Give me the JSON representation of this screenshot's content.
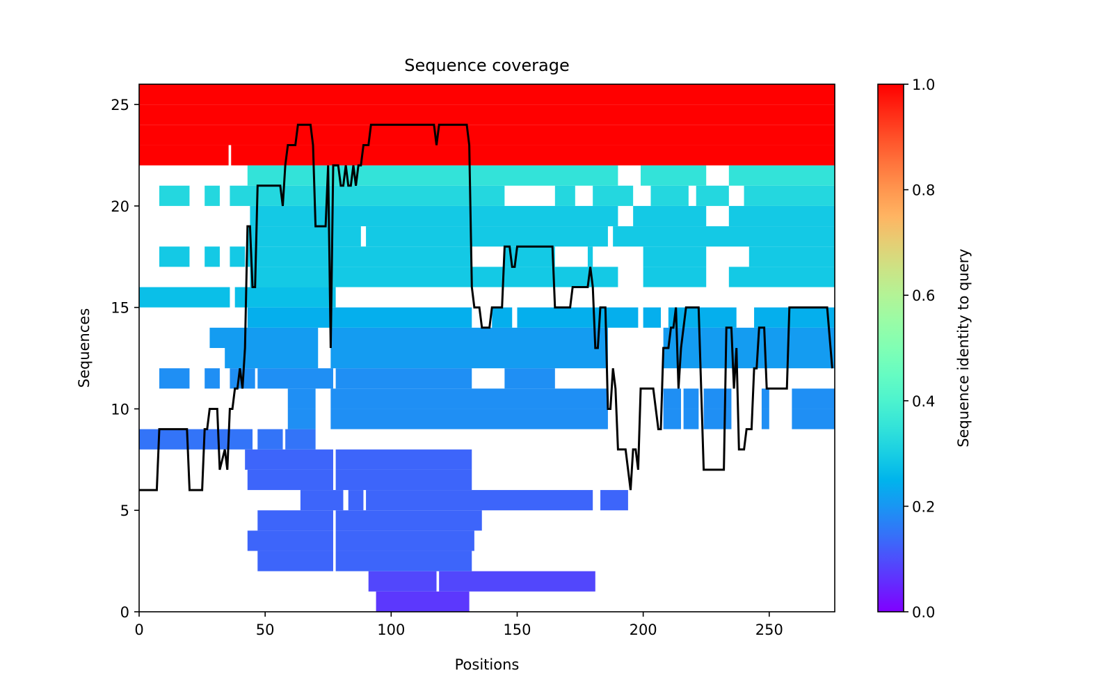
{
  "chart_data": {
    "type": "heatmap",
    "title": "Sequence coverage",
    "xlabel": "Positions",
    "ylabel": "Sequences",
    "xlim": [
      0,
      276
    ],
    "ylim": [
      0,
      26
    ],
    "x_ticks": [
      "0",
      "50",
      "100",
      "150",
      "200",
      "250"
    ],
    "y_ticks": [
      "0",
      "5",
      "10",
      "15",
      "20",
      "25"
    ],
    "colorbar": {
      "label": "Sequence identity to query",
      "colormap": "rainbow",
      "range": [
        0.0,
        1.0
      ],
      "ticks": [
        "0.0",
        "0.2",
        "0.4",
        "0.6",
        "0.8",
        "1.0"
      ],
      "stops": [
        "#ff0000",
        "#ff7f00",
        "#ffe000",
        "#7fff7f",
        "#00c3ec",
        "#2d5af5",
        "#7f00ff"
      ]
    },
    "rows": [
      {
        "row": 0,
        "identity": 0.07,
        "segments": [
          [
            94,
            131
          ]
        ]
      },
      {
        "row": 1,
        "identity": 0.09,
        "segments": [
          [
            91,
            118
          ],
          [
            119,
            181
          ]
        ]
      },
      {
        "row": 2,
        "identity": 0.13,
        "segments": [
          [
            47,
            77
          ],
          [
            78,
            132
          ]
        ]
      },
      {
        "row": 3,
        "identity": 0.13,
        "segments": [
          [
            43,
            77
          ],
          [
            78,
            133
          ]
        ]
      },
      {
        "row": 4,
        "identity": 0.13,
        "segments": [
          [
            47,
            77
          ],
          [
            78,
            136
          ]
        ]
      },
      {
        "row": 5,
        "identity": 0.13,
        "segments": [
          [
            64,
            81
          ],
          [
            83,
            89
          ],
          [
            90,
            180
          ],
          [
            183,
            194
          ]
        ]
      },
      {
        "row": 6,
        "identity": 0.13,
        "segments": [
          [
            43,
            77
          ],
          [
            78,
            132
          ]
        ]
      },
      {
        "row": 7,
        "identity": 0.13,
        "segments": [
          [
            42,
            77
          ],
          [
            78,
            132
          ]
        ]
      },
      {
        "row": 8,
        "identity": 0.15,
        "segments": [
          [
            0,
            45
          ],
          [
            47,
            57
          ],
          [
            58,
            70
          ]
        ]
      },
      {
        "row": 9,
        "identity": 0.19,
        "segments": [
          [
            59,
            70
          ],
          [
            76,
            186
          ],
          [
            208,
            215
          ],
          [
            216,
            222
          ],
          [
            224,
            235
          ],
          [
            247,
            250
          ],
          [
            259,
            276
          ]
        ]
      },
      {
        "row": 10,
        "identity": 0.19,
        "segments": [
          [
            59,
            70
          ],
          [
            76,
            186
          ],
          [
            208,
            215
          ],
          [
            216,
            222
          ],
          [
            224,
            235
          ],
          [
            247,
            250
          ],
          [
            259,
            276
          ]
        ]
      },
      {
        "row": 11,
        "identity": 0.19,
        "segments": [
          [
            8,
            20
          ],
          [
            26,
            32
          ],
          [
            36,
            46
          ],
          [
            47,
            77
          ],
          [
            78,
            132
          ],
          [
            145,
            165
          ]
        ]
      },
      {
        "row": 12,
        "identity": 0.21,
        "segments": [
          [
            34,
            71
          ],
          [
            76,
            186
          ],
          [
            208,
            276
          ]
        ]
      },
      {
        "row": 13,
        "identity": 0.21,
        "segments": [
          [
            28,
            71
          ],
          [
            76,
            186
          ],
          [
            208,
            276
          ]
        ]
      },
      {
        "row": 14,
        "identity": 0.24,
        "segments": [
          [
            43,
            132
          ],
          [
            140,
            148
          ],
          [
            150,
            198
          ],
          [
            200,
            207
          ],
          [
            210,
            237
          ],
          [
            244,
            276
          ]
        ]
      },
      {
        "row": 15,
        "identity": 0.27,
        "segments": [
          [
            0,
            36
          ],
          [
            38,
            78
          ]
        ]
      },
      {
        "row": 16,
        "identity": 0.29,
        "segments": [
          [
            44,
            190
          ],
          [
            200,
            225
          ],
          [
            234,
            276
          ]
        ]
      },
      {
        "row": 17,
        "identity": 0.29,
        "segments": [
          [
            8,
            20
          ],
          [
            26,
            32
          ],
          [
            36,
            42
          ],
          [
            43,
            132
          ],
          [
            145,
            165
          ],
          [
            178,
            180
          ],
          [
            200,
            225
          ],
          [
            242,
            276
          ]
        ]
      },
      {
        "row": 18,
        "identity": 0.29,
        "segments": [
          [
            43,
            88
          ],
          [
            90,
            186
          ],
          [
            188,
            276
          ]
        ]
      },
      {
        "row": 19,
        "identity": 0.29,
        "segments": [
          [
            44,
            190
          ],
          [
            196,
            225
          ],
          [
            234,
            276
          ]
        ]
      },
      {
        "row": 20,
        "identity": 0.32,
        "segments": [
          [
            8,
            20
          ],
          [
            26,
            32
          ],
          [
            36,
            145
          ],
          [
            165,
            173
          ],
          [
            180,
            196
          ],
          [
            203,
            218
          ],
          [
            221,
            234
          ],
          [
            240,
            276
          ]
        ]
      },
      {
        "row": 21,
        "identity": 0.35,
        "segments": [
          [
            43,
            190
          ],
          [
            199,
            225
          ],
          [
            234,
            276
          ]
        ]
      },
      {
        "row": 22,
        "identity": 1.0,
        "segments": [
          [
            0,
            35.5
          ],
          [
            36.5,
            276
          ]
        ]
      },
      {
        "row": 23,
        "identity": 1.0,
        "segments": [
          [
            0,
            276
          ]
        ]
      },
      {
        "row": 24,
        "identity": 1.0,
        "segments": [
          [
            0,
            276
          ]
        ]
      },
      {
        "row": 25,
        "identity": 1.0,
        "segments": [
          [
            0,
            276
          ]
        ]
      }
    ],
    "coverage": {
      "name": "coverage",
      "color": "#000000",
      "points": [
        [
          0,
          6
        ],
        [
          7,
          6
        ],
        [
          8,
          9
        ],
        [
          19,
          9
        ],
        [
          20,
          6
        ],
        [
          25,
          6
        ],
        [
          26,
          9
        ],
        [
          27,
          9
        ],
        [
          28,
          10
        ],
        [
          31,
          10
        ],
        [
          32,
          7
        ],
        [
          34,
          8
        ],
        [
          35,
          7
        ],
        [
          36,
          10
        ],
        [
          37,
          10
        ],
        [
          38,
          11
        ],
        [
          39,
          11
        ],
        [
          40,
          12
        ],
        [
          41,
          11
        ],
        [
          42,
          13
        ],
        [
          43,
          19
        ],
        [
          44,
          19
        ],
        [
          45,
          16
        ],
        [
          46,
          16
        ],
        [
          47,
          21
        ],
        [
          56,
          21
        ],
        [
          57,
          20
        ],
        [
          58,
          22
        ],
        [
          59,
          23
        ],
        [
          62,
          23
        ],
        [
          63,
          24
        ],
        [
          68,
          24
        ],
        [
          69,
          23
        ],
        [
          70,
          19
        ],
        [
          74,
          19
        ],
        [
          75,
          22
        ],
        [
          76,
          13
        ],
        [
          77,
          22
        ],
        [
          79,
          22
        ],
        [
          80,
          21
        ],
        [
          81,
          21
        ],
        [
          82,
          22
        ],
        [
          83,
          21
        ],
        [
          84,
          21
        ],
        [
          85,
          22
        ],
        [
          86,
          21
        ],
        [
          87,
          22
        ],
        [
          88,
          22
        ],
        [
          89,
          23
        ],
        [
          91,
          23
        ],
        [
          92,
          24
        ],
        [
          117,
          24
        ],
        [
          118,
          23
        ],
        [
          119,
          24
        ],
        [
          130,
          24
        ],
        [
          131,
          23
        ],
        [
          132,
          16
        ],
        [
          133,
          15
        ],
        [
          135,
          15
        ],
        [
          136,
          14
        ],
        [
          139,
          14
        ],
        [
          140,
          15
        ],
        [
          144,
          15
        ],
        [
          145,
          18
        ],
        [
          147,
          18
        ],
        [
          148,
          17
        ],
        [
          149,
          17
        ],
        [
          150,
          18
        ],
        [
          164,
          18
        ],
        [
          165,
          15
        ],
        [
          171,
          15
        ],
        [
          172,
          16
        ],
        [
          178,
          16
        ],
        [
          179,
          17
        ],
        [
          180,
          16
        ],
        [
          181,
          13
        ],
        [
          182,
          13
        ],
        [
          183,
          15
        ],
        [
          185,
          15
        ],
        [
          186,
          10
        ],
        [
          187,
          10
        ],
        [
          188,
          12
        ],
        [
          189,
          11
        ],
        [
          190,
          8
        ],
        [
          193,
          8
        ],
        [
          195,
          6
        ],
        [
          196,
          8
        ],
        [
          197,
          8
        ],
        [
          198,
          7
        ],
        [
          199,
          11
        ],
        [
          204,
          11
        ],
        [
          206,
          9
        ],
        [
          207,
          9
        ],
        [
          208,
          13
        ],
        [
          210,
          13
        ],
        [
          211,
          14
        ],
        [
          212,
          14
        ],
        [
          213,
          15
        ],
        [
          214,
          11
        ],
        [
          215,
          13
        ],
        [
          217,
          15
        ],
        [
          222,
          15
        ],
        [
          224,
          7
        ],
        [
          232,
          7
        ],
        [
          233,
          14
        ],
        [
          235,
          14
        ],
        [
          236,
          11
        ],
        [
          237,
          13
        ],
        [
          238,
          8
        ],
        [
          240,
          8
        ],
        [
          241,
          9
        ],
        [
          243,
          9
        ],
        [
          244,
          12
        ],
        [
          245,
          12
        ],
        [
          246,
          14
        ],
        [
          248,
          14
        ],
        [
          249,
          11
        ],
        [
          257,
          11
        ],
        [
          258,
          15
        ],
        [
          273,
          15
        ],
        [
          275,
          12
        ]
      ]
    }
  }
}
